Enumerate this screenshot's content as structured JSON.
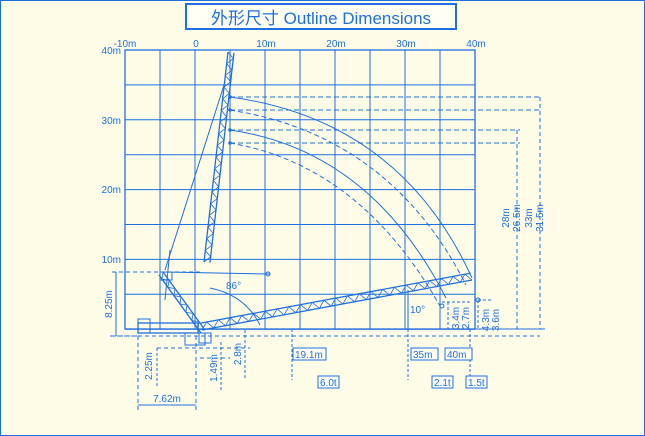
{
  "title": "外形尺寸 Outline Dimensions",
  "accent_color": "#1f6fe0",
  "x_axis_labels": [
    "-10m",
    "0",
    "10m",
    "20m",
    "30m",
    "40m"
  ],
  "y_axis_labels": [
    "40m",
    "30m",
    "20m",
    "10m"
  ],
  "dimensions": {
    "height_8_25": "8.25m",
    "offset_2_25": "2.25m",
    "width_7_62": "7.62m",
    "pivot_1_49": "1.49m",
    "pivot_2_8": "2.8m",
    "angle_86": "86°",
    "angle_10": "10°",
    "h_28": "28m",
    "h_26_5": "26.5m",
    "h_33": "33m",
    "h_31_5": "31.5m",
    "h_3_4": "3.4m",
    "h_2_7": "2.7m",
    "h_4_3": "4.3m",
    "h_3_6": "3.6m"
  },
  "radius_tags": [
    {
      "radius": "19.1m",
      "load": "6.0t"
    },
    {
      "radius": "35m",
      "load": "2.1t"
    },
    {
      "radius": "40m",
      "load": "1.5t"
    }
  ]
}
